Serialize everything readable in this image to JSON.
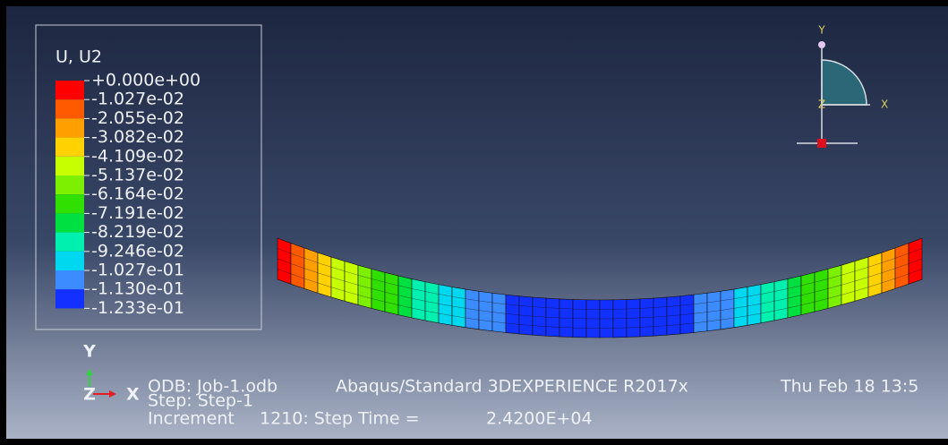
{
  "legend": {
    "title": "U, U2",
    "labels": [
      "+0.000e+00",
      "-1.027e-02",
      "-2.055e-02",
      "-3.082e-02",
      "-4.109e-02",
      "-5.137e-02",
      "-6.164e-02",
      "-7.191e-02",
      "-8.219e-02",
      "-9.246e-02",
      "-1.027e-01",
      "-1.130e-01",
      "-1.233e-01"
    ],
    "colors": [
      "#ff0000",
      "#ff5a00",
      "#ffa000",
      "#ffd200",
      "#c8ff00",
      "#7cf000",
      "#30e000",
      "#00e040",
      "#00f0b0",
      "#00d8f0",
      "#3c8cff",
      "#1230ff"
    ]
  },
  "view_triad": {
    "y": "Y",
    "x": "X",
    "z": "Z"
  },
  "triad": {
    "y": "Y",
    "x": "X",
    "z": "Z"
  },
  "info": {
    "odb": "ODB: Job-1.odb",
    "solver": "Abaqus/Standard 3DEXPERIENCE R2017x",
    "date": "Thu Feb 18 13:5",
    "step": "Step: Step-1",
    "increment_label": "Increment",
    "increment": "1210: Step Time =",
    "step_time": "2.4200E+04"
  }
}
